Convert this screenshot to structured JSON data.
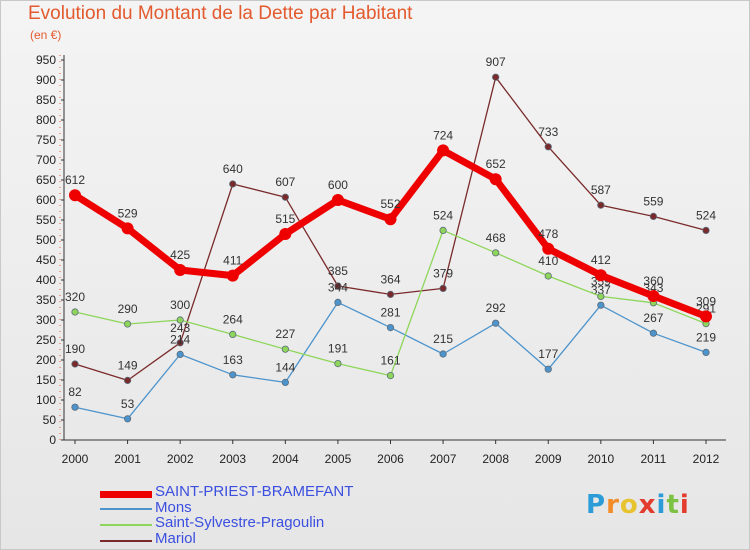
{
  "title": "Evolution du Montant de la Dette par Habitant",
  "unit": "(en €)",
  "logo": {
    "text": "Proxiti",
    "colors": [
      "#2b9cd8",
      "#f28c28",
      "#e8c330",
      "#e33b2e",
      "#2b9cd8",
      "#7cc243",
      "#e33b2e"
    ]
  },
  "chart_data": {
    "type": "line",
    "x": [
      "2000",
      "2001",
      "2002",
      "2003",
      "2004",
      "2005",
      "2006",
      "2007",
      "2008",
      "2009",
      "2010",
      "2011",
      "2012"
    ],
    "ylim": [
      0,
      950
    ],
    "yticks": [
      0,
      50,
      100,
      150,
      200,
      250,
      300,
      350,
      400,
      450,
      500,
      550,
      600,
      650,
      700,
      750,
      800,
      850,
      900,
      950
    ],
    "grid": false,
    "legend_position": "bottom-left",
    "series": [
      {
        "name": "Mariol",
        "color": "#7a2a2a",
        "width": 1.3,
        "values": [
          190,
          149,
          243,
          640,
          607,
          385,
          364,
          379,
          907,
          733,
          587,
          559,
          524
        ]
      },
      {
        "name": "Mons",
        "color": "#4d94cc",
        "width": 1.3,
        "values": [
          82,
          53,
          214,
          163,
          144,
          344,
          281,
          215,
          292,
          177,
          337,
          267,
          219
        ]
      },
      {
        "name": "Saint-Sylvestre-Pragoulin",
        "color": "#8ed65a",
        "width": 1.3,
        "values": [
          320,
          290,
          300,
          264,
          227,
          191,
          161,
          524,
          468,
          410,
          359,
          343,
          291
        ]
      },
      {
        "name": "SAINT-PRIEST-BRAMEFANT",
        "color": "#ee0000",
        "width": 7,
        "values": [
          612,
          529,
          425,
          411,
          515,
          600,
          552,
          724,
          652,
          478,
          412,
          360,
          309
        ]
      }
    ],
    "legend_order": [
      "SAINT-PRIEST-BRAMEFANT",
      "Mons",
      "Saint-Sylvestre-Pragoulin",
      "Mariol"
    ]
  }
}
